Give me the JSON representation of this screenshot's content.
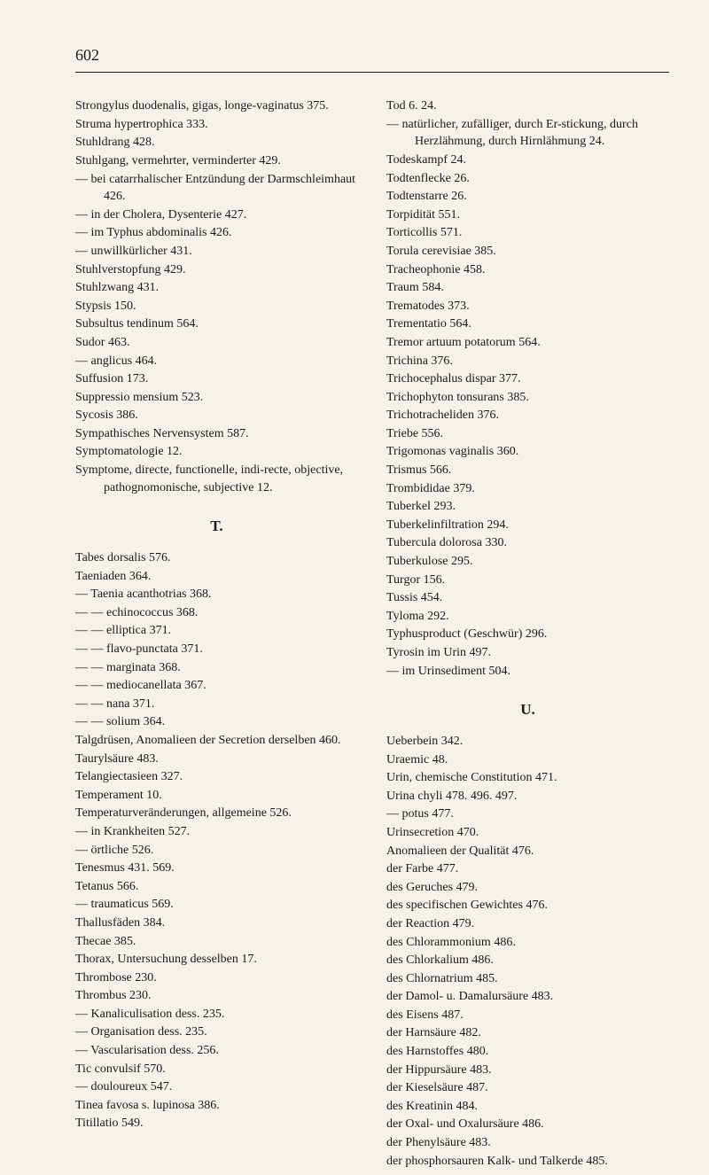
{
  "pageNumber": "602",
  "sectionT": "T.",
  "sectionU": "U.",
  "left": [
    {
      "t": "Strongylus duodenalis, gigas, longe-vaginatus 375.",
      "c": "indent1"
    },
    {
      "t": "Struma hypertrophica 333.",
      "c": ""
    },
    {
      "t": "Stuhldrang 428.",
      "c": ""
    },
    {
      "t": "Stuhlgang, vermehrter, verminderter 429.",
      "c": ""
    },
    {
      "t": "— bei catarrhalischer Entzündung der Darmschleimhaut 426.",
      "c": "indent1"
    },
    {
      "t": "— in der Cholera, Dysenterie 427.",
      "c": "indent1"
    },
    {
      "t": "— im Typhus abdominalis 426.",
      "c": "indent1"
    },
    {
      "t": "— unwillkürlicher 431.",
      "c": "indent1"
    },
    {
      "t": "Stuhlverstopfung 429.",
      "c": ""
    },
    {
      "t": "Stuhlzwang 431.",
      "c": ""
    },
    {
      "t": "Stypsis 150.",
      "c": ""
    },
    {
      "t": "Subsultus tendinum 564.",
      "c": ""
    },
    {
      "t": "Sudor 463.",
      "c": ""
    },
    {
      "t": "— anglicus 464.",
      "c": "indent1"
    },
    {
      "t": "Suffusion 173.",
      "c": ""
    },
    {
      "t": "Suppressio mensium 523.",
      "c": ""
    },
    {
      "t": "Sycosis 386.",
      "c": ""
    },
    {
      "t": "Sympathisches Nervensystem 587.",
      "c": ""
    },
    {
      "t": "Symptomatologie 12.",
      "c": ""
    },
    {
      "t": "Symptome, directe, functionelle, indi-recte, objective, pathognomonische, subjective 12.",
      "c": "indent1"
    }
  ],
  "leftT": [
    {
      "t": "Tabes dorsalis 576.",
      "c": ""
    },
    {
      "t": "Taeniaden 364.",
      "c": ""
    },
    {
      "t": "— Taenia acanthotrias 368.",
      "c": "indent1"
    },
    {
      "t": "—     —     echinococcus 368.",
      "c": "indent1"
    },
    {
      "t": "—     —     elliptica 371.",
      "c": "indent1"
    },
    {
      "t": "—     —     flavo-punctata 371.",
      "c": "indent1"
    },
    {
      "t": "—     —     marginata 368.",
      "c": "indent1"
    },
    {
      "t": "—     —     mediocanellata 367.",
      "c": "indent1"
    },
    {
      "t": "—     —     nana 371.",
      "c": "indent1"
    },
    {
      "t": "—     —     solium 364.",
      "c": "indent1"
    },
    {
      "t": "Talgdrüsen, Anomalieen der Secretion derselben 460.",
      "c": "indent1"
    },
    {
      "t": "Taurylsäure 483.",
      "c": ""
    },
    {
      "t": "Telangiectasieen 327.",
      "c": ""
    },
    {
      "t": "Temperament 10.",
      "c": ""
    },
    {
      "t": "Temperaturveränderungen, allgemeine 526.",
      "c": "indent1"
    },
    {
      "t": "— in Krankheiten 527.",
      "c": "indent1"
    },
    {
      "t": "— örtliche 526.",
      "c": "indent1"
    },
    {
      "t": "Tenesmus 431. 569.",
      "c": ""
    },
    {
      "t": "Tetanus 566.",
      "c": ""
    },
    {
      "t": "— traumaticus 569.",
      "c": "indent1"
    },
    {
      "t": "Thallusfäden 384.",
      "c": ""
    },
    {
      "t": "Thecae 385.",
      "c": ""
    },
    {
      "t": "Thorax, Untersuchung desselben 17.",
      "c": ""
    },
    {
      "t": "Thrombose 230.",
      "c": ""
    },
    {
      "t": "Thrombus 230.",
      "c": ""
    },
    {
      "t": "— Kanaliculisation dess. 235.",
      "c": "indent1"
    },
    {
      "t": "— Organisation dess. 235.",
      "c": "indent1"
    },
    {
      "t": "— Vascularisation dess. 256.",
      "c": "indent1"
    },
    {
      "t": "Tic convulsif 570.",
      "c": ""
    },
    {
      "t": "— douloureux 547.",
      "c": "indent1"
    },
    {
      "t": "Tinea favosa s. lupinosa 386.",
      "c": ""
    },
    {
      "t": "Titillatio 549.",
      "c": ""
    }
  ],
  "right": [
    {
      "t": "Tod 6. 24.",
      "c": ""
    },
    {
      "t": "— natürlicher, zufälliger, durch Er-stickung, durch Herzlähmung, durch Hirnlähmung 24.",
      "c": "indent1"
    },
    {
      "t": "Todeskampf 24.",
      "c": ""
    },
    {
      "t": "Todtenflecke 26.",
      "c": ""
    },
    {
      "t": "Todtenstarre 26.",
      "c": ""
    },
    {
      "t": "Torpidität 551.",
      "c": ""
    },
    {
      "t": "Torticollis 571.",
      "c": ""
    },
    {
      "t": "Torula cerevisiae 385.",
      "c": ""
    },
    {
      "t": "Tracheophonie 458.",
      "c": ""
    },
    {
      "t": "Traum 584.",
      "c": ""
    },
    {
      "t": "Trematodes 373.",
      "c": ""
    },
    {
      "t": "Trementatio 564.",
      "c": ""
    },
    {
      "t": "Tremor artuum potatorum 564.",
      "c": ""
    },
    {
      "t": "Trichina 376.",
      "c": ""
    },
    {
      "t": "Trichocephalus dispar 377.",
      "c": ""
    },
    {
      "t": "Trichophyton tonsurans 385.",
      "c": ""
    },
    {
      "t": "Trichotracheliden 376.",
      "c": ""
    },
    {
      "t": "Triebe 556.",
      "c": ""
    },
    {
      "t": "Trigomonas vaginalis 360.",
      "c": ""
    },
    {
      "t": "Trismus 566.",
      "c": ""
    },
    {
      "t": "Trombididae 379.",
      "c": ""
    },
    {
      "t": "Tuberkel 293.",
      "c": ""
    },
    {
      "t": "Tuberkelinfiltration 294.",
      "c": ""
    },
    {
      "t": "Tubercula dolorosa 330.",
      "c": ""
    },
    {
      "t": "Tuberkulose 295.",
      "c": ""
    },
    {
      "t": "Turgor 156.",
      "c": ""
    },
    {
      "t": "Tussis 454.",
      "c": ""
    },
    {
      "t": "Tyloma 292.",
      "c": ""
    },
    {
      "t": "Typhusproduct (Geschwür) 296.",
      "c": ""
    },
    {
      "t": "Tyrosin im Urin 497.",
      "c": ""
    },
    {
      "t": "— im Urinsediment 504.",
      "c": "indent1"
    }
  ],
  "rightU": [
    {
      "t": "Ueberbein 342.",
      "c": ""
    },
    {
      "t": "Uraemic 48.",
      "c": ""
    },
    {
      "t": "Urin, chemische Constitution 471.",
      "c": ""
    },
    {
      "t": "Urina chyli 478. 496. 497.",
      "c": ""
    },
    {
      "t": "— potus 477.",
      "c": "indent1"
    },
    {
      "t": "Urinsecretion 470.",
      "c": ""
    },
    {
      "t": "Anomalieen der Qualität 476.",
      "c": "indent1"
    },
    {
      "t": "der Farbe 477.",
      "c": "indent2"
    },
    {
      "t": "des Geruches 479.",
      "c": "indent2"
    },
    {
      "t": "des specifischen Gewichtes 476.",
      "c": "indent2"
    },
    {
      "t": "der Reaction 479.",
      "c": "indent2"
    },
    {
      "t": "des Chlorammonium 486.",
      "c": "indent2"
    },
    {
      "t": "des Chlorkalium 486.",
      "c": "indent2"
    },
    {
      "t": "des Chlornatrium 485.",
      "c": "indent2"
    },
    {
      "t": "der Damol- u. Damalursäure 483.",
      "c": "indent2"
    },
    {
      "t": "des Eisens 487.",
      "c": "indent2"
    },
    {
      "t": "der Harnsäure 482.",
      "c": "indent2"
    },
    {
      "t": "des Harnstoffes 480.",
      "c": "indent2"
    },
    {
      "t": "der Hippursäure 483.",
      "c": "indent2"
    },
    {
      "t": "der Kieselsäure 487.",
      "c": "indent2"
    },
    {
      "t": "des Kreatinin 484.",
      "c": "indent2"
    },
    {
      "t": "der Oxal- und Oxalursäure 486.",
      "c": "indent2"
    },
    {
      "t": "der Phenylsäure 483.",
      "c": "indent2"
    },
    {
      "t": "der phosphorsauren Kalk- und Talkerde 485.",
      "c": "indent2"
    }
  ]
}
